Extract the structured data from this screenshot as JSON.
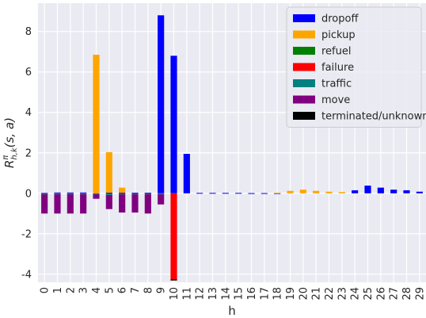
{
  "chart_data": {
    "type": "bar",
    "stacked": true,
    "title": "",
    "xlabel": "h",
    "ylabel": "R^π_{h,k}(s,a)",
    "ylim": [
      -4.4,
      9.4
    ],
    "yticks": [
      -4,
      -2,
      0,
      2,
      4,
      6,
      8
    ],
    "grid": true,
    "legend_position": "top-right",
    "categories": [
      "0",
      "1",
      "2",
      "3",
      "4",
      "5",
      "6",
      "7",
      "8",
      "9",
      "10",
      "11",
      "12",
      "13",
      "14",
      "15",
      "16",
      "17",
      "18",
      "19",
      "20",
      "21",
      "22",
      "23",
      "24",
      "25",
      "26",
      "27",
      "28",
      "29"
    ],
    "series": [
      {
        "name": "dropoff",
        "color": "#0000ff",
        "values": [
          0.02,
          0.04,
          0.04,
          0.04,
          0,
          0.03,
          0.03,
          0.03,
          0.03,
          8.8,
          6.8,
          1.95,
          0.02,
          0.02,
          0.02,
          0.02,
          0.01,
          0.01,
          0.01,
          0,
          0,
          0,
          0,
          0,
          0.15,
          0.38,
          0.28,
          0.18,
          0.15,
          0.08
        ]
      },
      {
        "name": "pickup",
        "color": "#ffa500",
        "values": [
          0,
          0,
          0,
          0,
          6.85,
          2.0,
          0.25,
          0,
          0,
          0,
          0,
          0,
          0,
          0,
          0,
          0,
          0,
          0,
          0.02,
          0.12,
          0.18,
          0.12,
          0.08,
          0.06,
          0,
          0,
          0,
          0,
          0,
          0
        ]
      },
      {
        "name": "refuel",
        "color": "#008000",
        "values": [
          0,
          0,
          0,
          0,
          0,
          0,
          0,
          0,
          0,
          0,
          0,
          0,
          0,
          0,
          0,
          0,
          0,
          0,
          0,
          0,
          0,
          0,
          0,
          0,
          0,
          0,
          0,
          0,
          0,
          0
        ]
      },
      {
        "name": "failure",
        "color": "#ff0000",
        "values": [
          0,
          0,
          0,
          0,
          0,
          0,
          0,
          0,
          0,
          0,
          -4.25,
          0,
          0,
          0,
          0,
          0,
          0,
          0,
          0,
          0,
          0,
          0,
          0,
          0,
          0,
          0,
          0,
          0,
          0,
          0
        ]
      },
      {
        "name": "traffic",
        "color": "#008080",
        "values": [
          -0.05,
          -0.05,
          -0.05,
          -0.05,
          -0.05,
          -0.08,
          -0.05,
          -0.05,
          -0.05,
          -0.05,
          0,
          0,
          0,
          0,
          0,
          0,
          0,
          0,
          0,
          0,
          0,
          0,
          0,
          0,
          0,
          0,
          0,
          0,
          0,
          0
        ]
      },
      {
        "name": "move",
        "color": "#800080",
        "values": [
          -0.95,
          -0.95,
          -0.95,
          -0.95,
          -0.22,
          -0.7,
          -0.9,
          -0.9,
          -0.95,
          -0.5,
          0,
          0,
          0,
          0,
          0,
          0,
          0,
          0,
          0,
          0,
          0,
          0,
          0,
          0,
          0,
          0,
          0,
          0,
          0,
          0
        ]
      },
      {
        "name": "terminated/unknown",
        "color": "#000000",
        "values": [
          0,
          0,
          0,
          0,
          0,
          0,
          0,
          0,
          0,
          0,
          -0.06,
          0,
          0,
          0,
          0,
          0,
          0,
          0,
          0,
          0,
          0,
          0,
          0,
          0,
          0,
          0,
          0,
          0,
          0,
          0
        ]
      }
    ]
  }
}
